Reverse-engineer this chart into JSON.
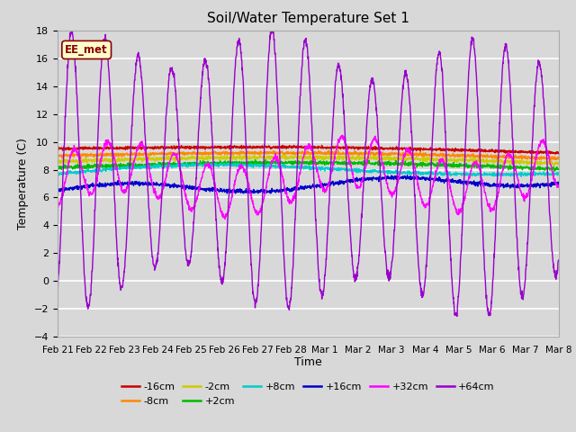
{
  "title": "Soil/Water Temperature Set 1",
  "xlabel": "Time",
  "ylabel": "Temperature (C)",
  "ylim": [
    -4,
    18
  ],
  "yticks": [
    -4,
    -2,
    0,
    2,
    4,
    6,
    8,
    10,
    12,
    14,
    16,
    18
  ],
  "x_tick_labels": [
    "Feb 21",
    "Feb 22",
    "Feb 23",
    "Feb 24",
    "Feb 25",
    "Feb 26",
    "Feb 27",
    "Feb 28",
    "Mar 1",
    "Mar 2",
    "Mar 3",
    "Mar 4",
    "Mar 5",
    "Mar 6",
    "Mar 7",
    "Mar 8"
  ],
  "legend_label": "EE_met",
  "legend_bg": "#ffffcc",
  "legend_border": "#8b0000",
  "fig_bg_color": "#d8d8d8",
  "axes_bg": "#d8d8d8",
  "grid_color": "#ffffff",
  "series": [
    {
      "label": "-16cm",
      "color": "#cc0000",
      "base": 9.5,
      "amp": 0.25,
      "phase": 0.0
    },
    {
      "label": "-8cm",
      "color": "#ff8800",
      "base": 9.0,
      "amp": 0.35,
      "phase": 0.0
    },
    {
      "label": "-2cm",
      "color": "#cccc00",
      "base": 8.55,
      "amp": 0.45,
      "phase": 0.0
    },
    {
      "label": "+2cm",
      "color": "#00bb00",
      "base": 8.15,
      "amp": 0.55,
      "phase": 0.0
    },
    {
      "label": "+8cm",
      "color": "#00cccc",
      "base": 7.7,
      "amp": 0.65,
      "phase": 0.1
    },
    {
      "label": "+16cm",
      "color": "#0000cc",
      "base": 6.6,
      "amp": 0.6,
      "phase": 0.2
    },
    {
      "label": "+32cm",
      "color": "#ff00ff",
      "base": 7.2,
      "amp": 1.8,
      "phase": 0.3
    },
    {
      "label": "+64cm",
      "color": "#9900cc",
      "base": 7.8,
      "amp": 9.0,
      "phase": 0.0
    }
  ]
}
